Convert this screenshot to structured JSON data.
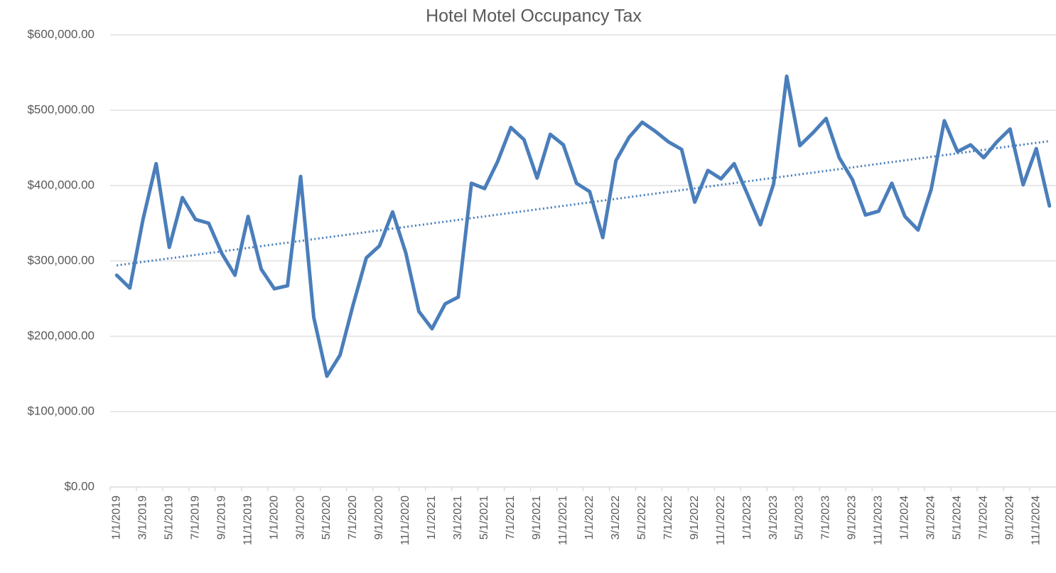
{
  "chart_data": {
    "type": "line",
    "title": "Hotel Motel Occupancy Tax",
    "categories": [
      "1/1/2019",
      null,
      "3/1/2019",
      null,
      "5/1/2019",
      null,
      "7/1/2019",
      null,
      "9/1/2019",
      null,
      "11/1/2019",
      null,
      "1/1/2020",
      null,
      "3/1/2020",
      null,
      "5/1/2020",
      null,
      "7/1/2020",
      null,
      "9/1/2020",
      null,
      "11/1/2020",
      null,
      "1/1/2021",
      null,
      "3/1/2021",
      null,
      "5/1/2021",
      null,
      "7/1/2021",
      null,
      "9/1/2021",
      null,
      "11/1/2021",
      null,
      "1/1/2022",
      null,
      "3/1/2022",
      null,
      "5/1/2022",
      null,
      "7/1/2022",
      null,
      "9/1/2022",
      null,
      "11/1/2022",
      null,
      "1/1/2023",
      null,
      "3/1/2023",
      null,
      "5/1/2023",
      null,
      "7/1/2023",
      null,
      "9/1/2023",
      null,
      "11/1/2023",
      null,
      "1/1/2024",
      null,
      "3/1/2024",
      null,
      "5/1/2024",
      null,
      "7/1/2024",
      null,
      "9/1/2024",
      null,
      "11/1/2024",
      null
    ],
    "values": [
      281000,
      264000,
      355000,
      429000,
      318000,
      384000,
      355000,
      350000,
      310000,
      281000,
      359000,
      289000,
      263000,
      267000,
      412000,
      225000,
      147000,
      175000,
      242000,
      304000,
      320000,
      365000,
      311000,
      233000,
      210000,
      243000,
      252000,
      403000,
      396000,
      432000,
      477000,
      461000,
      410000,
      468000,
      454000,
      403000,
      392000,
      331000,
      433000,
      464000,
      484000,
      472000,
      458000,
      448000,
      378000,
      420000,
      409000,
      429000,
      389000,
      348000,
      402000,
      545000,
      453000,
      470000,
      489000,
      437000,
      408000,
      361000,
      366000,
      403000,
      359000,
      341000,
      395000,
      486000,
      445000,
      454000,
      437000,
      458000,
      475000,
      401000,
      449000,
      373000
    ],
    "color": "#4a7ebb",
    "trendline": {
      "type": "linear",
      "values": [
        294000,
        459000
      ],
      "color": "#4a7ebb"
    },
    "ylim": [
      0,
      600000
    ],
    "yticks": [
      {
        "value": 0,
        "label": "$0.00"
      },
      {
        "value": 100000,
        "label": "$100,000.00"
      },
      {
        "value": 200000,
        "label": "$200,000.00"
      },
      {
        "value": 300000,
        "label": "$300,000.00"
      },
      {
        "value": 400000,
        "label": "$400,000.00"
      },
      {
        "value": 500000,
        "label": "$500,000.00"
      },
      {
        "value": 600000,
        "label": "$600,000.00"
      }
    ],
    "grid": true
  }
}
